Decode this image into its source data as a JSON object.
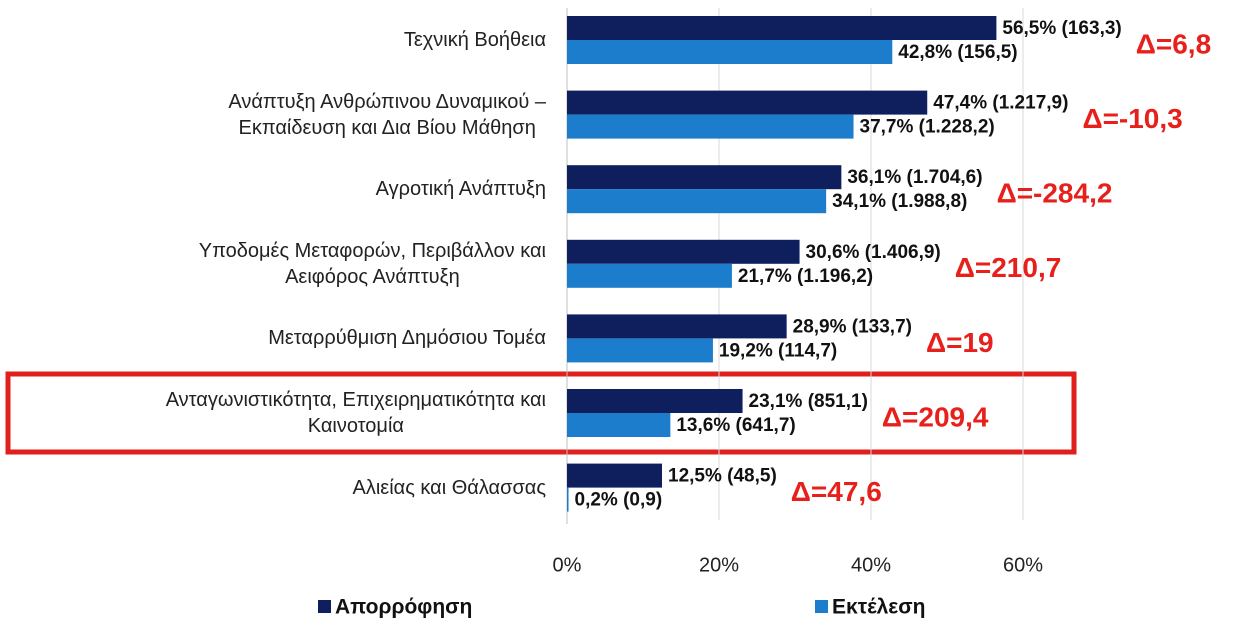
{
  "chart_data": {
    "type": "hbar",
    "categories": [
      "Τεχνική Βοήθεια",
      "Ανάπτυξη Ανθρώπινου Δυναμικού –\nΕκπαίδευση και Δια Βίου Μάθηση",
      "Αγροτική Ανάπτυξη",
      "Υποδομές Μεταφορών, Περιβάλλον και\nΑειφόρος Ανάπτυξη",
      "Μεταρρύθμιση Δημόσιου Τομέα",
      "Ανταγωνιστικότητα, Επιχειρηματικότητα και\nΚαινοτομία",
      "Αλιείας και Θάλασσας"
    ],
    "series": [
      {
        "name": "Απορρόφηση",
        "color": "#0f1f5e",
        "values": [
          56.5,
          47.4,
          36.1,
          30.6,
          28.9,
          23.1,
          12.5
        ],
        "value_labels": [
          "56,5% (163,3)",
          "47,4% (1.217,9)",
          "36,1% (1.704,6)",
          "30,6% (1.406,9)",
          "28,9% (133,7)",
          "23,1% (851,1)",
          "12,5% (48,5)"
        ]
      },
      {
        "name": "Εκτέλεση",
        "color": "#1b7dcc",
        "values": [
          42.8,
          37.7,
          34.1,
          21.7,
          19.2,
          13.6,
          0.2
        ],
        "value_labels": [
          "42,8% (156,5)",
          "37,7% (1.228,2)",
          "34,1% (1.988,8)",
          "21,7% (1.196,2)",
          "19,2% (114,7)",
          "13,6% (641,7)",
          "0,2% (0,9)"
        ]
      }
    ],
    "annotations": [
      "Δ=6,8",
      "Δ=-10,3",
      "Δ=-284,2",
      "Δ=210,7",
      "Δ=19",
      "Δ=209,4",
      "Δ=47,6"
    ],
    "xlim": [
      0,
      70
    ],
    "xticks": [
      {
        "value": 0,
        "label": "0%"
      },
      {
        "value": 20,
        "label": "20%"
      },
      {
        "value": 40,
        "label": "40%"
      },
      {
        "value": 60,
        "label": "60%"
      }
    ],
    "grid": true
  }
}
